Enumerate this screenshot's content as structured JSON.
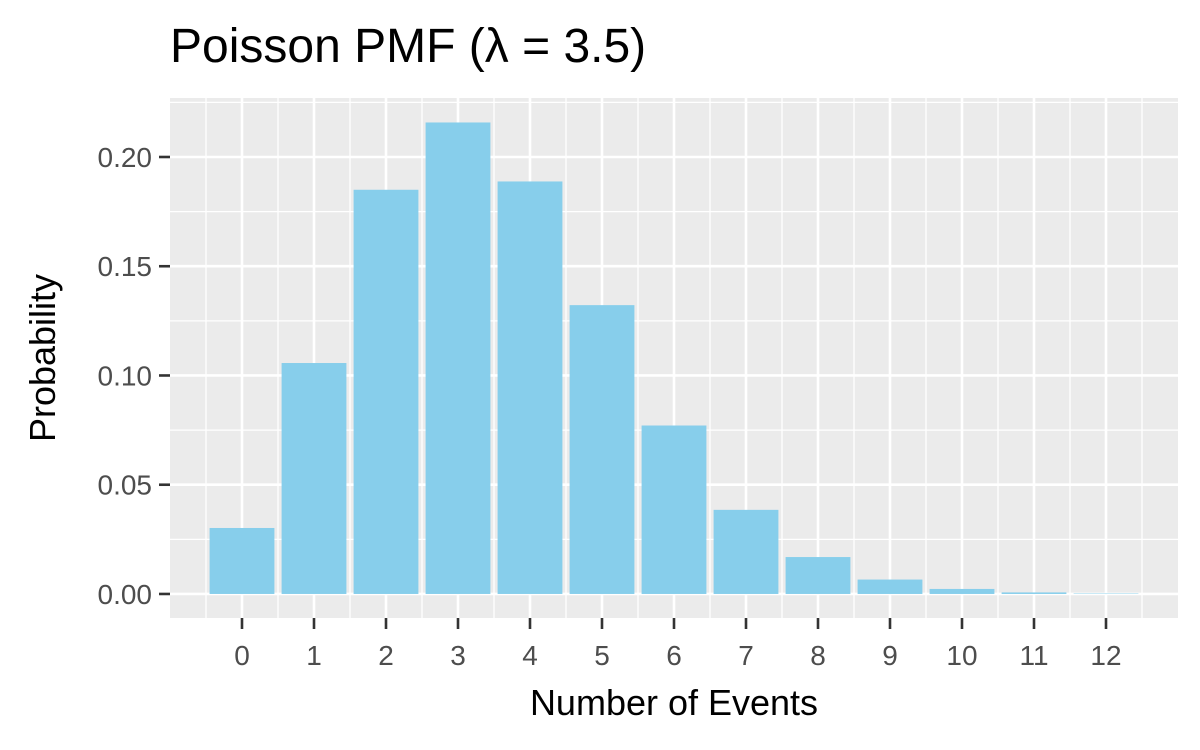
{
  "chart_data": {
    "type": "bar",
    "title": "Poisson PMF (λ = 3.5)",
    "xlabel": "Number of Events",
    "ylabel": "Probability",
    "categories": [
      "0",
      "1",
      "2",
      "3",
      "4",
      "5",
      "6",
      "7",
      "8",
      "9",
      "10",
      "11",
      "12"
    ],
    "values": [
      0.0302,
      0.1057,
      0.185,
      0.2158,
      0.1888,
      0.1322,
      0.0771,
      0.0385,
      0.0169,
      0.0066,
      0.0023,
      0.0007,
      0.0002
    ],
    "xlim": [
      -1,
      13
    ],
    "ylim": [
      -0.011,
      0.227
    ],
    "yticks": [
      0.0,
      0.05,
      0.1,
      0.15,
      0.2
    ],
    "ytick_labels": [
      "0.00",
      "0.05",
      "0.10",
      "0.15",
      "0.20"
    ],
    "grid": true,
    "legend": "none",
    "colors": {
      "bar": "#87CEEB",
      "panel_background": "#EBEBEB",
      "grid": "#FFFFFF",
      "tick_mark": "#333333",
      "tick_text": "#4D4D4D",
      "text": "#000000"
    }
  }
}
